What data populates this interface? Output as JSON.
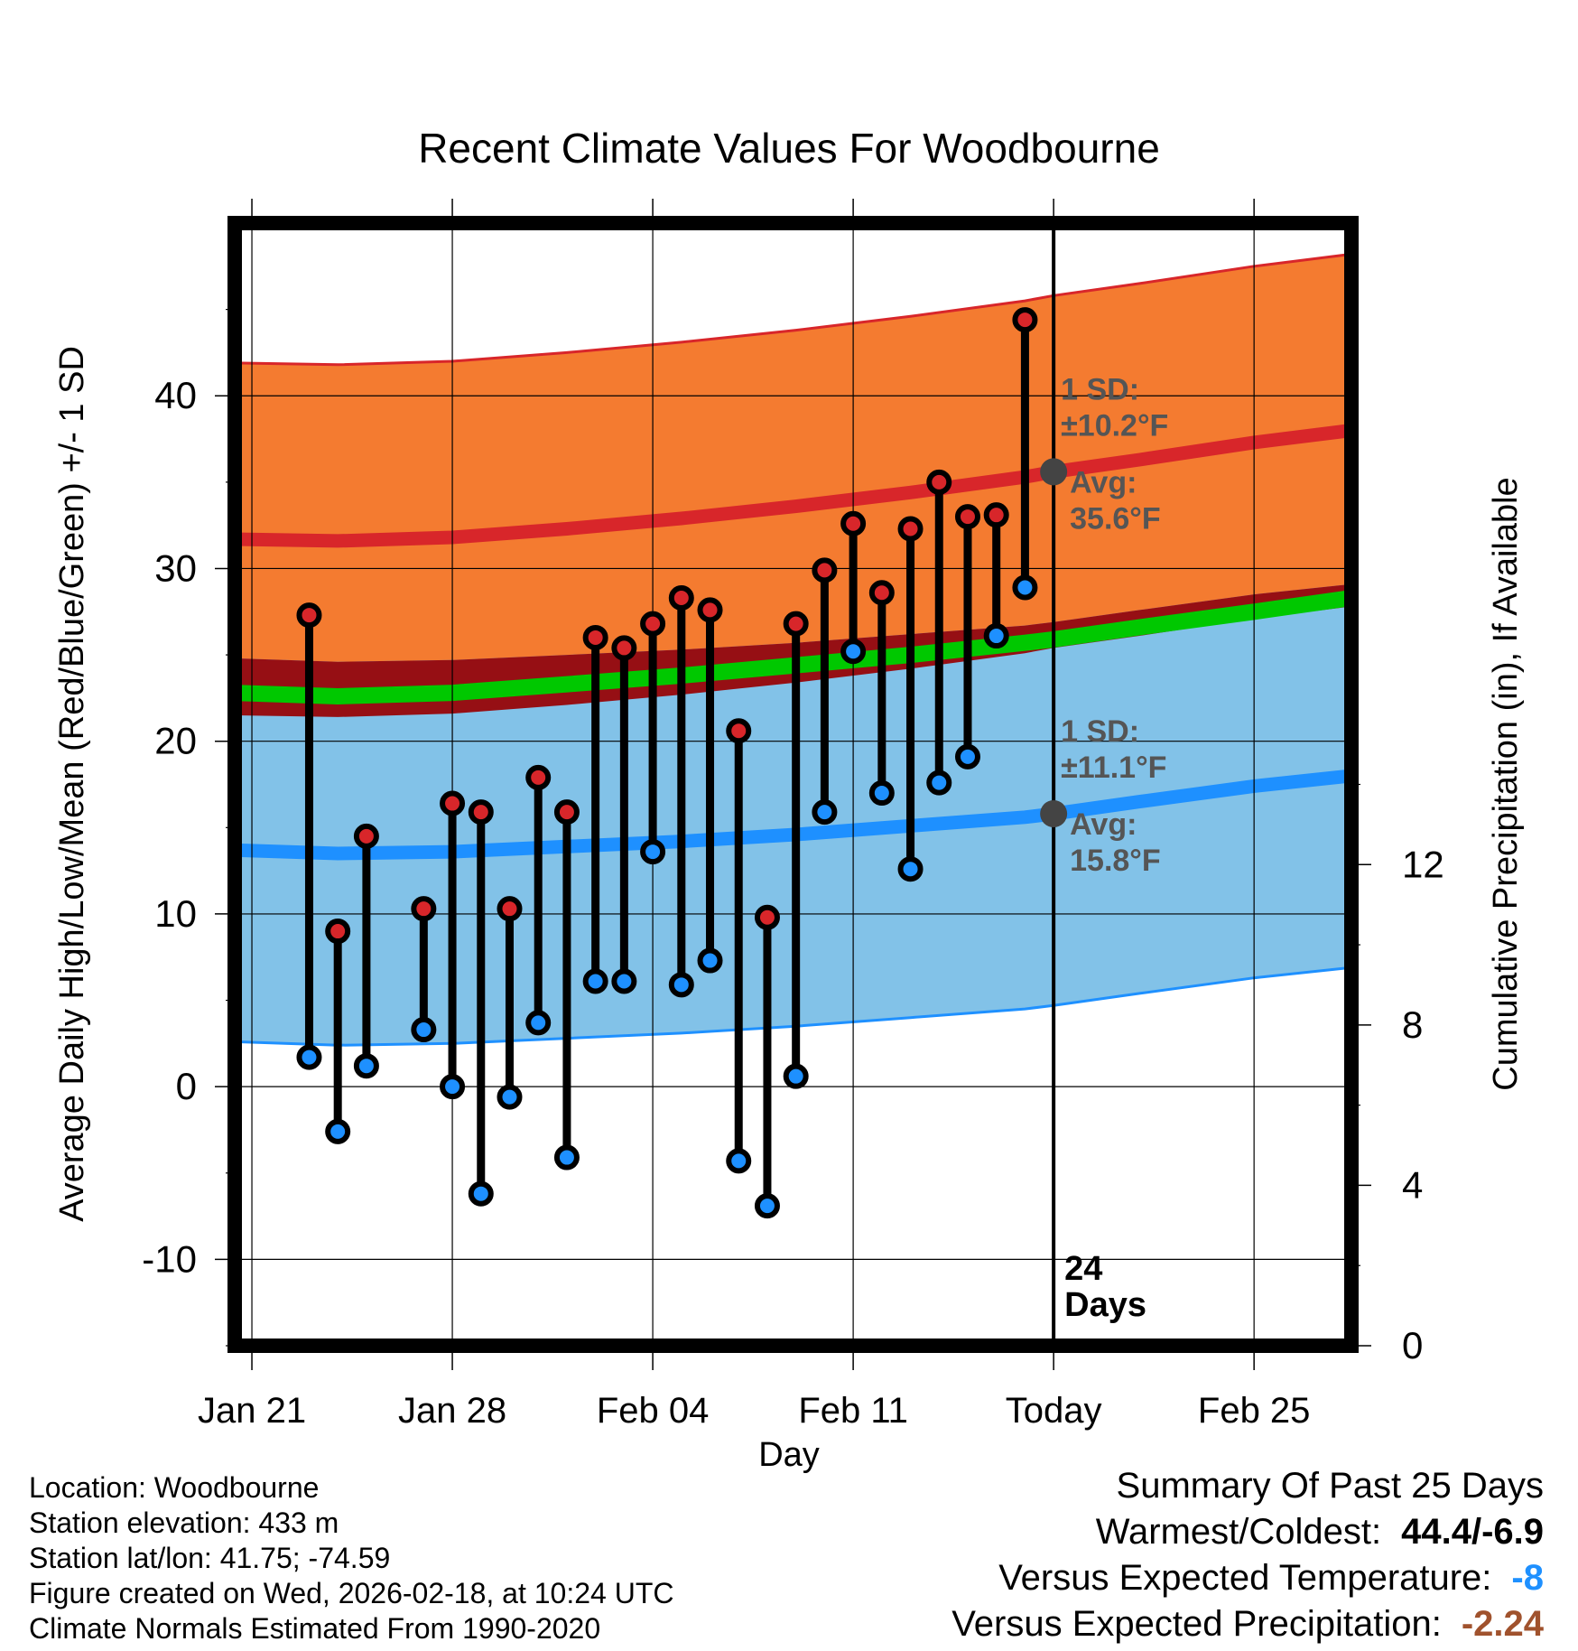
{
  "chart_data": {
    "type": "range",
    "title": "Recent Climate Values For Woodbourne",
    "xlabel": "Day",
    "ylabel": "Average Daily High/Low/Mean (Red/Blue/Green) +/- 1 SD",
    "y2label": "Cumulative Precipitation (in), If Available",
    "x_range_days": [
      -28.6,
      10.4
    ],
    "ylim": [
      -15,
      50
    ],
    "y2lim": [
      0,
      28
    ],
    "y_ticks": [
      -10,
      0,
      10,
      20,
      30,
      40
    ],
    "y_tick_labels": [
      "-10",
      "0",
      "10",
      "20",
      "30",
      "40"
    ],
    "y2_ticks": [
      0,
      4,
      8,
      12
    ],
    "y2_tick_labels": [
      "0",
      "4",
      "8",
      "12"
    ],
    "x_ticks": [
      {
        "day": -28,
        "label": "Jan 21"
      },
      {
        "day": -21,
        "label": "Jan 28"
      },
      {
        "day": -14,
        "label": "Feb 04"
      },
      {
        "day": -7,
        "label": "Feb 11"
      },
      {
        "day": 0,
        "label": "Today"
      },
      {
        "day": 7,
        "label": "Feb 25"
      }
    ],
    "today_day": 0,
    "days_label": "24\nDays",
    "normals": {
      "days": [
        -28.6,
        -25,
        -21,
        -17,
        -13,
        -9,
        -5,
        -1,
        0,
        3,
        7,
        10.4
      ],
      "avg_high": [
        31.7,
        31.6,
        31.8,
        32.3,
        32.9,
        33.6,
        34.4,
        35.3,
        35.6,
        36.3,
        37.3,
        38.0
      ],
      "avg_low": [
        13.7,
        13.5,
        13.6,
        13.9,
        14.2,
        14.6,
        15.1,
        15.6,
        15.8,
        16.5,
        17.4,
        18.0
      ],
      "avg_mean": [
        22.8,
        22.6,
        22.8,
        23.3,
        23.8,
        24.4,
        25.0,
        25.7,
        25.9,
        26.6,
        27.5,
        28.3
      ],
      "high_sd": 10.2,
      "low_sd": 11.1
    },
    "series": [
      {
        "name": "High",
        "values": [
          27.3,
          9.0,
          14.5,
          null,
          10.3,
          16.4,
          15.9,
          10.3,
          17.9,
          15.9,
          26.0,
          25.4,
          26.8,
          28.3,
          27.6,
          20.6,
          9.8,
          26.8,
          29.9,
          32.6,
          28.6,
          32.3,
          35.0,
          33.0,
          33.1,
          44.4
        ]
      },
      {
        "name": "Low",
        "values": [
          1.7,
          -2.6,
          1.2,
          null,
          3.3,
          0.0,
          -6.2,
          -0.6,
          3.7,
          -4.1,
          6.1,
          6.1,
          13.6,
          5.9,
          7.3,
          -4.3,
          -6.9,
          0.6,
          15.9,
          25.2,
          17.0,
          12.6,
          17.6,
          19.1,
          26.1,
          28.9
        ]
      }
    ],
    "obs_days": [
      -26,
      -25,
      -24,
      -23,
      -22,
      -21,
      -20,
      -19,
      -18,
      -17,
      -16,
      -15,
      -14,
      -13,
      -12,
      -11,
      -10,
      -9,
      -8,
      -7,
      -6,
      -5,
      -4,
      -3,
      -2,
      -1
    ],
    "annotations": [
      {
        "label1": "1 SD:",
        "label2": "±10.2°F",
        "label3": "Avg:",
        "label4": "35.6°F"
      },
      {
        "label1": "1 SD:",
        "label2": "±11.1°F",
        "label3": "Avg:",
        "label4": "15.8°F"
      }
    ],
    "colors": {
      "high_band": "#f47b30",
      "high_line": "#d8262a",
      "low_band": "#82c2e8",
      "low_line": "#1e90ff",
      "overlap": "#960f14",
      "mean": "#00c800",
      "dot_high": "#d8262a",
      "dot_low": "#1e90ff",
      "annot": "#555555"
    }
  },
  "meta": {
    "location": "Location: Woodbourne",
    "elevation": "Station elevation: 433 m",
    "latlon": "Station lat/lon: 41.75; -74.59",
    "created": "Figure created on Wed, 2026-02-18, at 10:24 UTC",
    "normals": "Climate Normals Estimated From 1990-2020"
  },
  "summary": {
    "title": "Summary Of Past 25 Days",
    "warm_label": "Warmest/Coldest:",
    "warm_value": "44.4/-6.9",
    "temp_label": "Versus Expected Temperature:",
    "temp_value": "-8",
    "temp_color": "#1e90ff",
    "precip_label": "Versus Expected Precipitation:",
    "precip_value": "-2.24",
    "precip_color": "#a0522d"
  }
}
